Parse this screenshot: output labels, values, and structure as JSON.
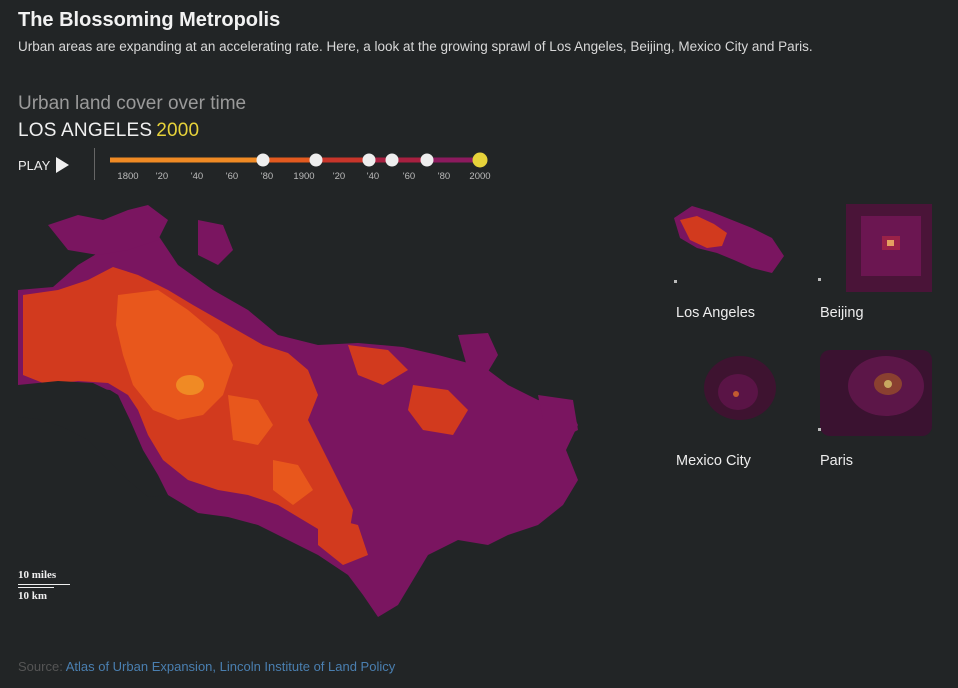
{
  "header": {
    "title": "The Blossoming Metropolis",
    "subtitle": "Urban areas are expanding at an accelerating rate. Here, a look at the growing sprawl of Los Angeles, Beijing, Mexico City and Paris."
  },
  "viz": {
    "section_title": "Urban land cover over time",
    "city": "LOS ANGELES",
    "year": "2000",
    "play_label": "PLAY"
  },
  "timeline": {
    "ticks": [
      "1800",
      "'20",
      "'40",
      "'60",
      "'80",
      "1900",
      "'20",
      "'40",
      "'60",
      "'80",
      "2000"
    ],
    "selected": "2000",
    "colors": [
      "#f08a24",
      "#e35a1f",
      "#b8262a",
      "#8c1a5e",
      "#e6d23a"
    ]
  },
  "scale": {
    "miles": "10 miles",
    "km": "10 km"
  },
  "thumbnails": [
    {
      "label": "Los Angeles"
    },
    {
      "label": "Beijing"
    },
    {
      "label": "Mexico City"
    },
    {
      "label": "Paris"
    }
  ],
  "source": {
    "prefix": "Source: ",
    "link": "Atlas of Urban Expansion, Lincoln Institute of Land Policy"
  }
}
